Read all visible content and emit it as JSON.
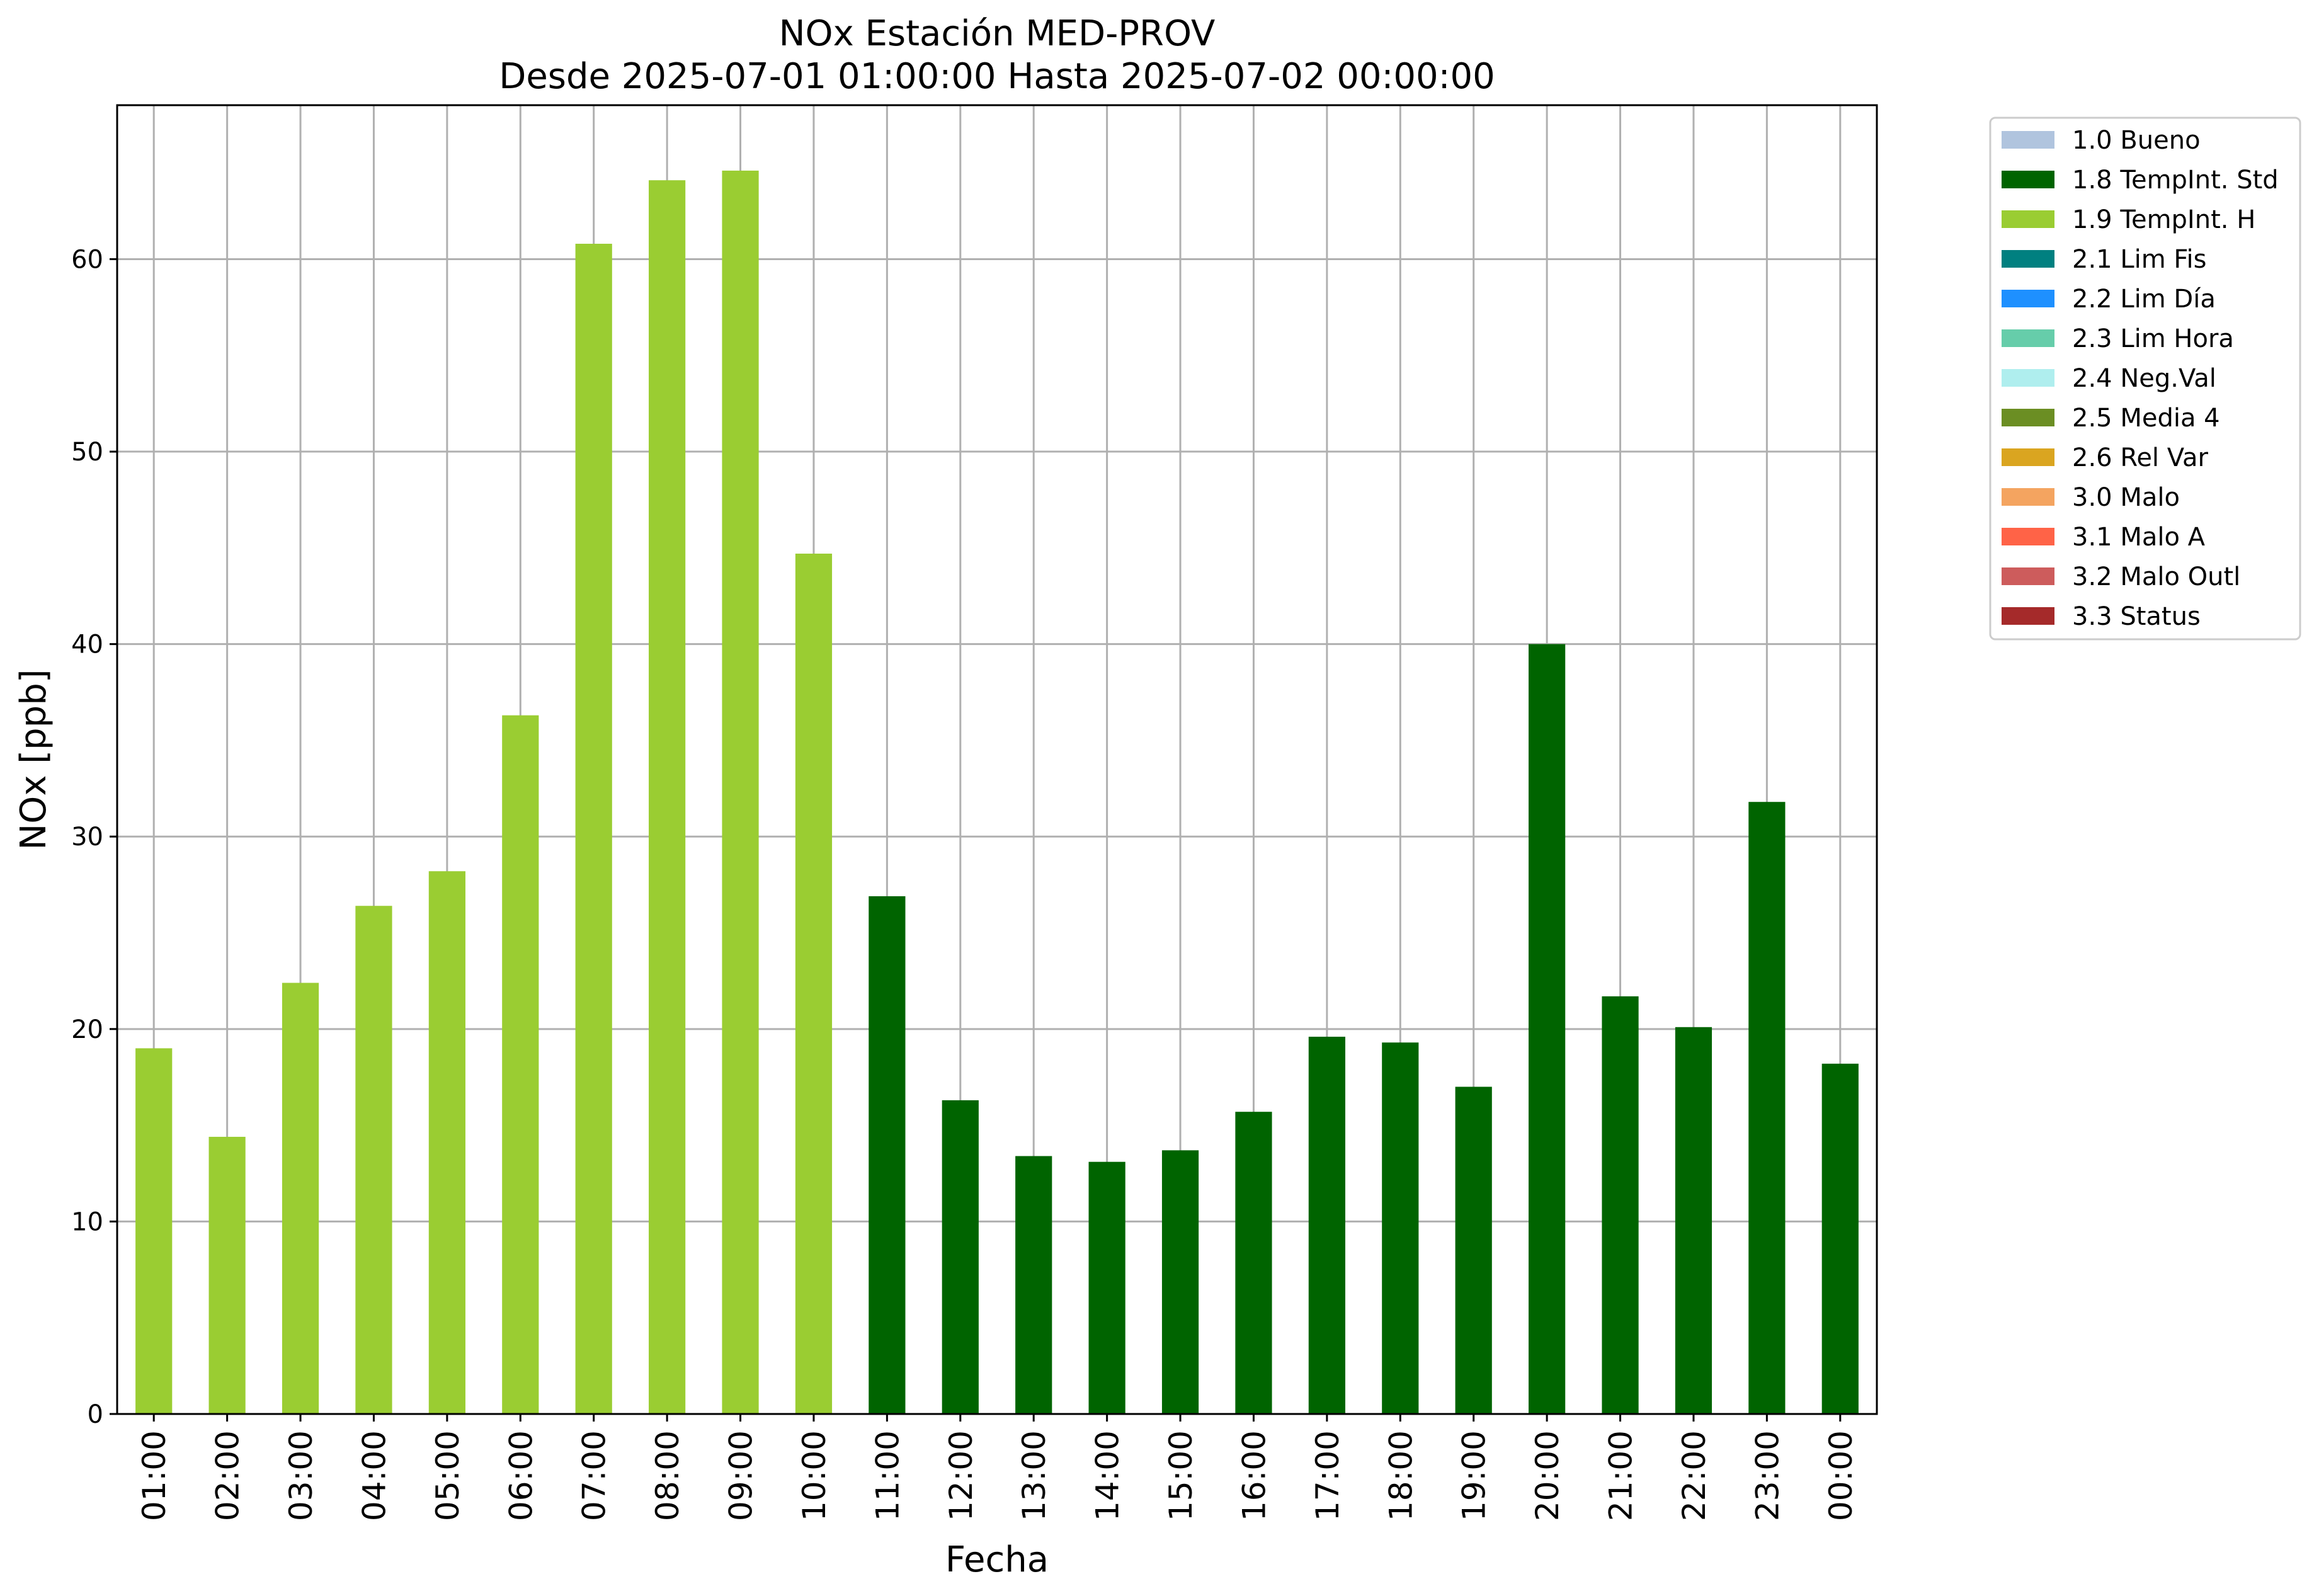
{
  "chart_data": {
    "type": "bar",
    "title": "NOx Estación MED-PROV",
    "subtitle": "Desde 2025-07-01 01:00:00 Hasta 2025-07-02 00:00:00",
    "xlabel": "Fecha",
    "ylabel": "NOx [ppb]",
    "ylim": [
      0,
      68
    ],
    "yticks": [
      0,
      10,
      20,
      30,
      40,
      50,
      60
    ],
    "grid": true,
    "legend_position": "outside-top-right",
    "categories": [
      "01:00",
      "02:00",
      "03:00",
      "04:00",
      "05:00",
      "06:00",
      "07:00",
      "08:00",
      "09:00",
      "10:00",
      "11:00",
      "12:00",
      "13:00",
      "14:00",
      "15:00",
      "16:00",
      "17:00",
      "18:00",
      "19:00",
      "20:00",
      "21:00",
      "22:00",
      "23:00",
      "00:00"
    ],
    "values": [
      19.0,
      14.4,
      22.4,
      26.4,
      28.2,
      36.3,
      60.8,
      64.1,
      64.6,
      44.7,
      26.9,
      16.3,
      13.4,
      13.1,
      13.7,
      15.7,
      19.6,
      19.3,
      17.0,
      40.0,
      21.7,
      20.1,
      31.8,
      18.2
    ],
    "flags": [
      "1.9 TempInt. H",
      "1.9 TempInt. H",
      "1.9 TempInt. H",
      "1.9 TempInt. H",
      "1.9 TempInt. H",
      "1.9 TempInt. H",
      "1.9 TempInt. H",
      "1.9 TempInt. H",
      "1.9 TempInt. H",
      "1.9 TempInt. H",
      "1.8 TempInt. Std",
      "1.8 TempInt. Std",
      "1.8 TempInt. Std",
      "1.8 TempInt. Std",
      "1.8 TempInt. Std",
      "1.8 TempInt. Std",
      "1.8 TempInt. Std",
      "1.8 TempInt. Std",
      "1.8 TempInt. Std",
      "1.8 TempInt. Std",
      "1.8 TempInt. Std",
      "1.8 TempInt. Std",
      "1.8 TempInt. Std",
      "1.8 TempInt. Std"
    ],
    "legend": [
      {
        "label": "1.0 Bueno",
        "color": "#b0c4de"
      },
      {
        "label": "1.8 TempInt. Std",
        "color": "#006400"
      },
      {
        "label": "1.9 TempInt. H",
        "color": "#9acd32"
      },
      {
        "label": "2.1 Lim Fis",
        "color": "#008080"
      },
      {
        "label": "2.2 Lim Día",
        "color": "#1e90ff"
      },
      {
        "label": "2.3 Lim Hora",
        "color": "#66cdaa"
      },
      {
        "label": "2.4 Neg.Val",
        "color": "#afeeee"
      },
      {
        "label": "2.5 Media 4",
        "color": "#6b8e23"
      },
      {
        "label": "2.6 Rel Var",
        "color": "#daa520"
      },
      {
        "label": "3.0 Malo",
        "color": "#f4a460"
      },
      {
        "label": "3.1 Malo A",
        "color": "#ff6347"
      },
      {
        "label": "3.2 Malo Outl",
        "color": "#cd5c5c"
      },
      {
        "label": "3.3 Status",
        "color": "#a52a2a"
      }
    ]
  }
}
